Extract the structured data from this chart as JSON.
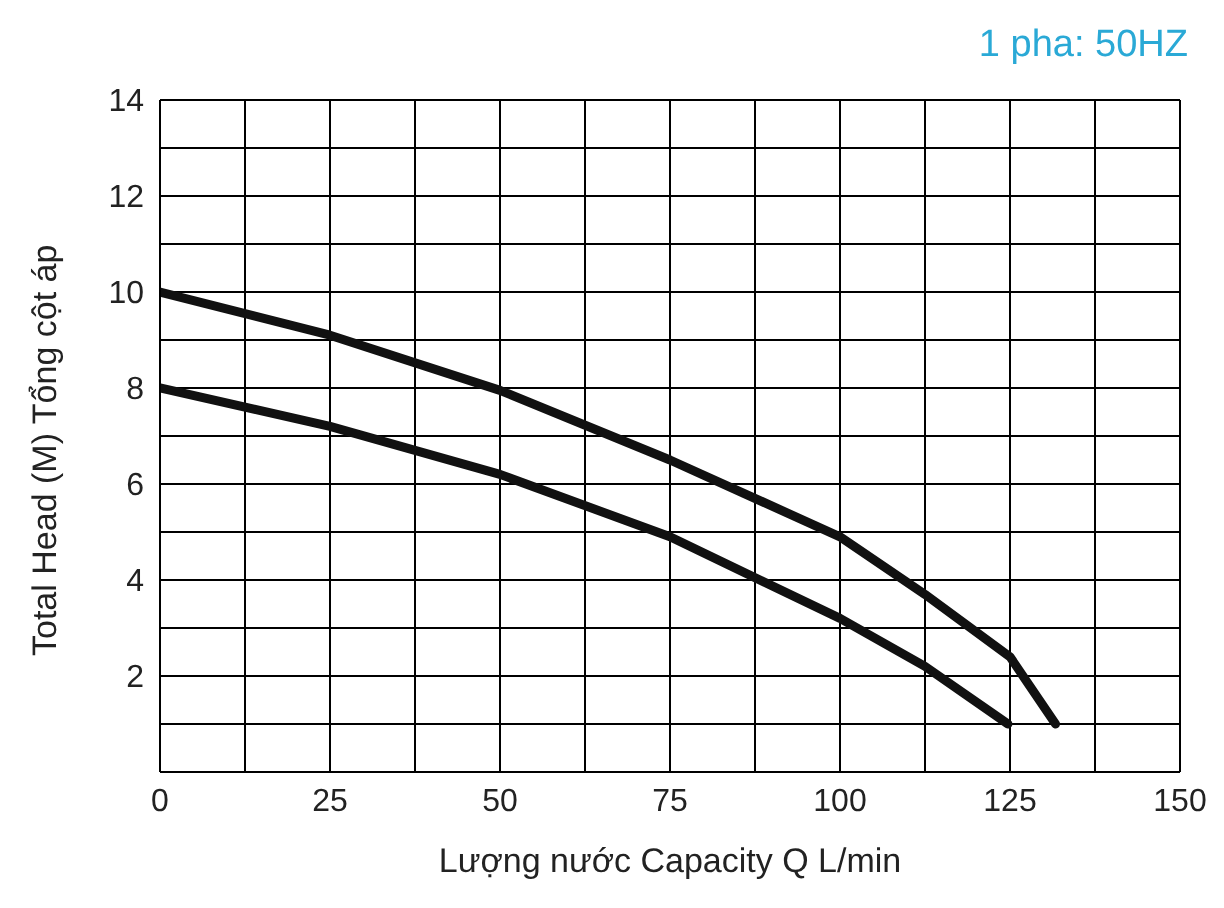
{
  "chart_data": {
    "type": "line",
    "title": "1 pha: 50HZ",
    "xlabel": "Lượng nước Capacity Q L/min",
    "ylabel": "Total Head (M) Tổng cột áp",
    "series": [
      {
        "color": "#111111",
        "x": [
          0,
          25,
          50,
          75,
          100,
          112.5,
          125,
          131.7
        ],
        "values": [
          10,
          9.1,
          7.95,
          6.5,
          4.9,
          3.7,
          2.4,
          1
        ]
      },
      {
        "color": "#111111",
        "x": [
          0,
          25,
          50,
          75,
          100,
          112.5,
          124.7
        ],
        "values": [
          8,
          7.2,
          6.2,
          4.9,
          3.2,
          2.2,
          1
        ]
      }
    ],
    "xlim": [
      0,
      150
    ],
    "xticks": [
      0,
      {
        "value": 12.5,
        "label": null
      },
      25,
      {
        "value": 37.5,
        "label": null
      },
      50,
      {
        "value": 62.5,
        "label": null
      },
      75,
      {
        "value": 87.5,
        "label": null
      },
      100,
      {
        "value": 112.5,
        "label": null
      },
      125,
      {
        "value": 137.5,
        "label": null
      },
      150
    ],
    "ylim": [
      0,
      14
    ],
    "yticks": [
      {
        "value": 1,
        "label": null
      },
      2,
      {
        "value": 3,
        "label": null
      },
      4,
      {
        "value": 5,
        "label": null
      },
      6,
      {
        "value": 7,
        "label": null
      },
      8,
      {
        "value": 9,
        "label": null
      },
      10,
      {
        "value": 11,
        "label": null
      },
      12,
      {
        "value": 13,
        "label": null
      },
      14
    ],
    "grid": true,
    "marker": "none",
    "line_style": "solid"
  }
}
